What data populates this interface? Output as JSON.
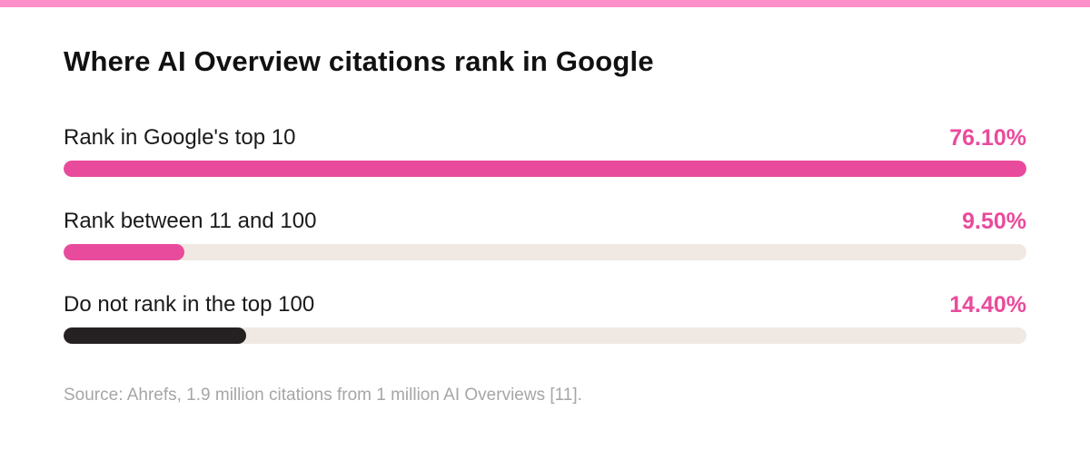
{
  "colors": {
    "stripe": "#ff8fc8",
    "accent": "#e94b9c",
    "dark": "#252022",
    "track": "#f0e8e3"
  },
  "chart_data": {
    "type": "bar",
    "orientation": "horizontal",
    "title": "Where AI Overview citations rank in Google",
    "categories": [
      "Rank in Google's top 10",
      "Rank between 11 and 100",
      "Do not rank in the top 100"
    ],
    "values": [
      76.1,
      9.5,
      14.4
    ],
    "value_labels": [
      "76.10%",
      "9.50%",
      "14.40%"
    ],
    "bar_colors": [
      "#e94b9c",
      "#e94b9c",
      "#252022"
    ],
    "display_fill_fraction": [
      1.0,
      0.125,
      0.19
    ],
    "xlim": [
      0,
      76.1
    ],
    "grid": false,
    "legend": "none"
  },
  "source": "Source: Ahrefs, 1.9 million citations from 1 million AI Overviews [11]."
}
